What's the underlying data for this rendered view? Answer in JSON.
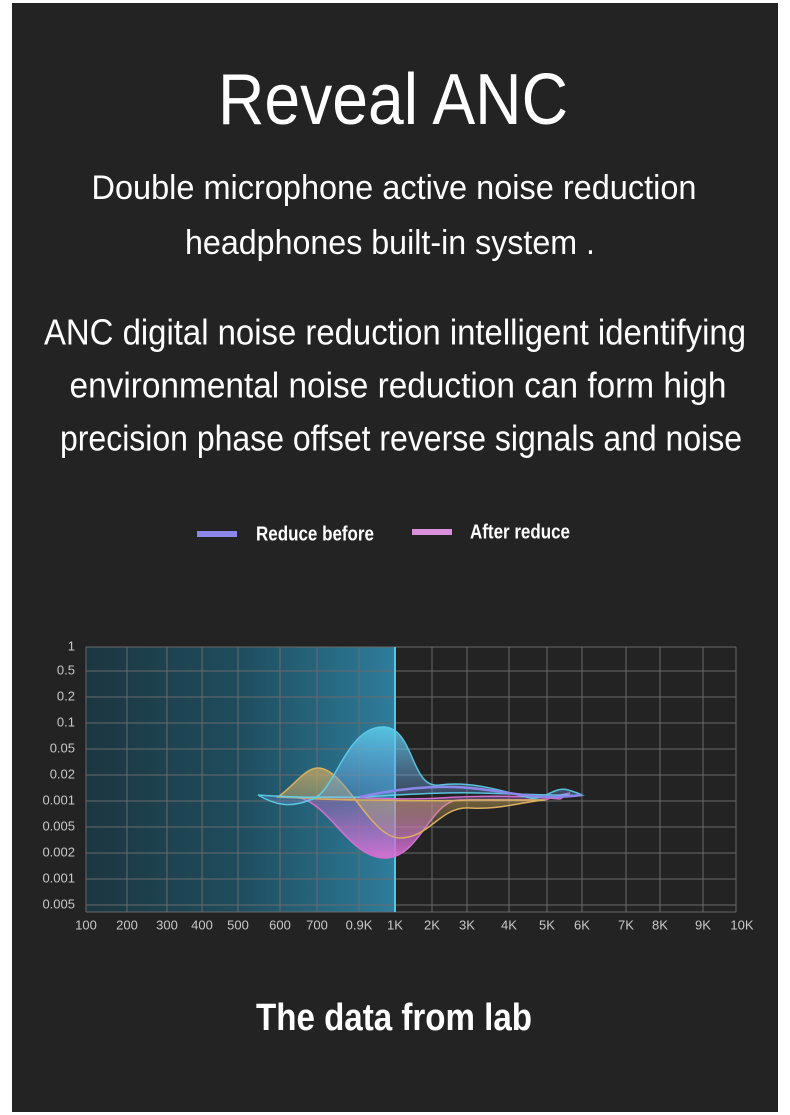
{
  "title": "Reveal ANC",
  "subtitle": [
    "Double microphone active noise reduction",
    "headphones built-in system ."
  ],
  "description": [
    "ANC digital noise reduction intelligent identifying",
    "environmental noise reduction can form high",
    "precision phase offset reverse signals and noise"
  ],
  "legend": [
    {
      "label": "Reduce before",
      "color": "#8b87ea"
    },
    {
      "label": "After reduce",
      "color": "#dc8fdc"
    }
  ],
  "chart": {
    "y_labels": [
      "1",
      "0.5",
      "0.2",
      "0.1",
      "0.05",
      "0.02",
      "0.001",
      "0.005",
      "0.002",
      "0.001",
      "0.005"
    ],
    "x_labels": [
      "100",
      "200",
      "300",
      "400",
      "500",
      "600",
      "700",
      "0.9K",
      "1K",
      "2K",
      "3K",
      "4K",
      "5K",
      "6K",
      "7K",
      "8K",
      "9K",
      "10K"
    ]
  },
  "footer": "The data from lab"
}
